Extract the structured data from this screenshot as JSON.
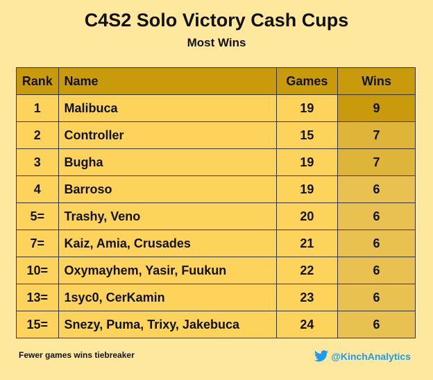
{
  "header": {
    "title": "C4S2 Solo Victory Cash Cups",
    "subtitle": "Most Wins"
  },
  "table": {
    "columns": [
      "Rank",
      "Name",
      "Games",
      "Wins"
    ],
    "rows": [
      [
        "1",
        "Malibuca",
        19,
        9
      ],
      [
        "2",
        "Controller",
        15,
        7
      ],
      [
        "3",
        "Bugha",
        19,
        7
      ],
      [
        "4",
        "Barroso",
        19,
        6
      ],
      [
        "5=",
        "Trashy, Veno",
        20,
        6
      ],
      [
        "7=",
        "Kaiz, Amia, Crusades",
        21,
        6
      ],
      [
        "10=",
        "Oxymayhem, Yasir, Fuukun",
        22,
        6
      ],
      [
        "13=",
        "1syc0, CerKamin",
        23,
        6
      ],
      [
        "15=",
        "Snezy, Puma, Trixy, Jakebuca",
        24,
        6
      ]
    ]
  },
  "footer": {
    "note": "Fewer games wins tiebreaker",
    "handle": "@KinchAnalytics"
  }
}
